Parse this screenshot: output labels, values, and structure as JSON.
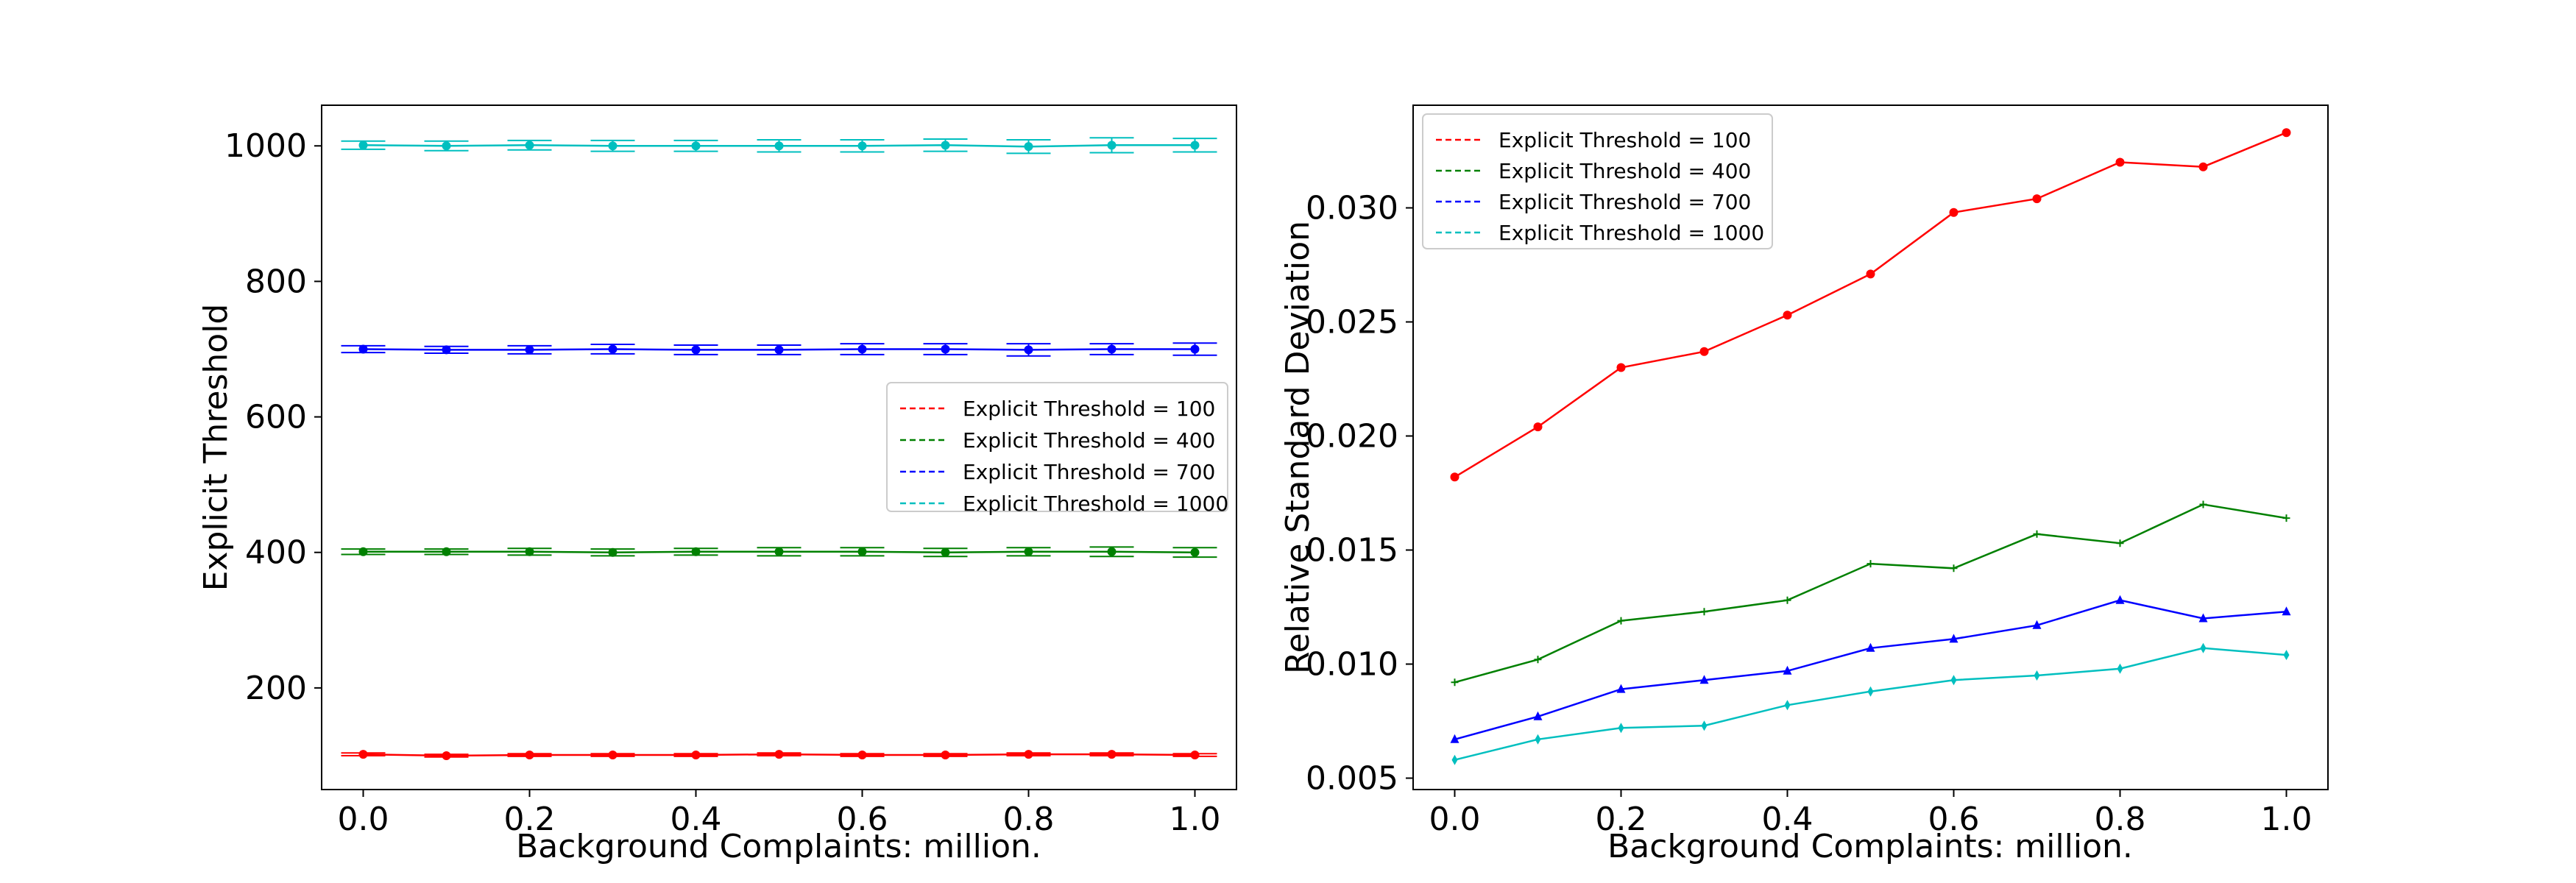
{
  "chart_data": [
    {
      "type": "line",
      "subtype": "errorbar",
      "xlabel": "Background Complaints: million.",
      "ylabel": "Explicit Threshold",
      "xlim": [
        -0.05,
        1.05
      ],
      "ylim": [
        50,
        1060
      ],
      "xticks": [
        0.0,
        0.2,
        0.4,
        0.6,
        0.8,
        1.0
      ],
      "xtick_labels": [
        "0.0",
        "0.2",
        "0.4",
        "0.6",
        "0.8",
        "1.0"
      ],
      "yticks": [
        200,
        400,
        600,
        800,
        1000
      ],
      "ytick_labels": [
        "200",
        "400",
        "600",
        "800",
        "1000"
      ],
      "legend_position": "center-right",
      "x": [
        0.0,
        0.1,
        0.2,
        0.3,
        0.4,
        0.5,
        0.6,
        0.7,
        0.8,
        0.9,
        1.0
      ],
      "series": [
        {
          "name": "Explicit Threshold = 100",
          "color": "#ff0000",
          "marker": "o",
          "values": [
            102,
            100,
            101,
            101,
            101,
            102,
            101,
            101,
            102,
            102,
            101
          ],
          "errors": [
            2,
            2,
            2,
            2,
            2,
            2,
            2,
            2,
            2,
            2,
            2
          ]
        },
        {
          "name": "Explicit Threshold = 400",
          "color": "#008000",
          "marker": "o",
          "values": [
            401,
            401,
            401,
            400,
            401,
            401,
            401,
            400,
            401,
            401,
            400
          ],
          "errors": [
            4,
            4,
            5,
            5,
            5,
            6,
            6,
            6,
            6,
            7,
            7
          ]
        },
        {
          "name": "Explicit Threshold = 700",
          "color": "#0000ff",
          "marker": "o",
          "values": [
            700,
            699,
            699,
            700,
            699,
            699,
            700,
            700,
            699,
            700,
            700
          ],
          "errors": [
            5,
            5,
            6,
            7,
            7,
            7,
            8,
            8,
            9,
            8,
            9
          ]
        },
        {
          "name": "Explicit Threshold = 1000",
          "color": "#00bfbf",
          "marker": "o",
          "values": [
            1001,
            1000,
            1001,
            1000,
            1000,
            1000,
            1000,
            1001,
            999,
            1001,
            1001
          ],
          "errors": [
            6,
            7,
            7,
            8,
            8,
            9,
            9,
            9,
            10,
            11,
            10
          ]
        }
      ]
    },
    {
      "type": "line",
      "xlabel": "Background Complaints: million.",
      "ylabel": "Relative Standard Deviation",
      "xlim": [
        -0.05,
        1.05
      ],
      "ylim": [
        0.0045,
        0.0345
      ],
      "xticks": [
        0.0,
        0.2,
        0.4,
        0.6,
        0.8,
        1.0
      ],
      "xtick_labels": [
        "0.0",
        "0.2",
        "0.4",
        "0.6",
        "0.8",
        "1.0"
      ],
      "yticks": [
        0.005,
        0.01,
        0.015,
        0.02,
        0.025,
        0.03
      ],
      "ytick_labels": [
        "0.005",
        "0.010",
        "0.015",
        "0.020",
        "0.025",
        "0.030"
      ],
      "legend_position": "top-left",
      "x": [
        0.0,
        0.1,
        0.2,
        0.3,
        0.4,
        0.5,
        0.6,
        0.7,
        0.8,
        0.9,
        1.0
      ],
      "series": [
        {
          "name": "Explicit Threshold = 100",
          "color": "#ff0000",
          "marker": "o",
          "values": [
            0.0182,
            0.0204,
            0.023,
            0.0237,
            0.0253,
            0.0271,
            0.0298,
            0.0304,
            0.032,
            0.0318,
            0.0333
          ]
        },
        {
          "name": "Explicit Threshold = 400",
          "color": "#008000",
          "marker": "+",
          "values": [
            0.0092,
            0.0102,
            0.0119,
            0.0123,
            0.0128,
            0.0144,
            0.0142,
            0.0157,
            0.0153,
            0.017,
            0.0164
          ]
        },
        {
          "name": "Explicit Threshold = 700",
          "color": "#0000ff",
          "marker": "^",
          "values": [
            0.0067,
            0.0077,
            0.0089,
            0.0093,
            0.0097,
            0.0107,
            0.0111,
            0.0117,
            0.0128,
            0.012,
            0.0123
          ]
        },
        {
          "name": "Explicit Threshold = 1000",
          "color": "#00bfbf",
          "marker": "d",
          "values": [
            0.0058,
            0.0067,
            0.0072,
            0.0073,
            0.0082,
            0.0088,
            0.0093,
            0.0095,
            0.0098,
            0.0107,
            0.0104
          ]
        }
      ]
    }
  ]
}
